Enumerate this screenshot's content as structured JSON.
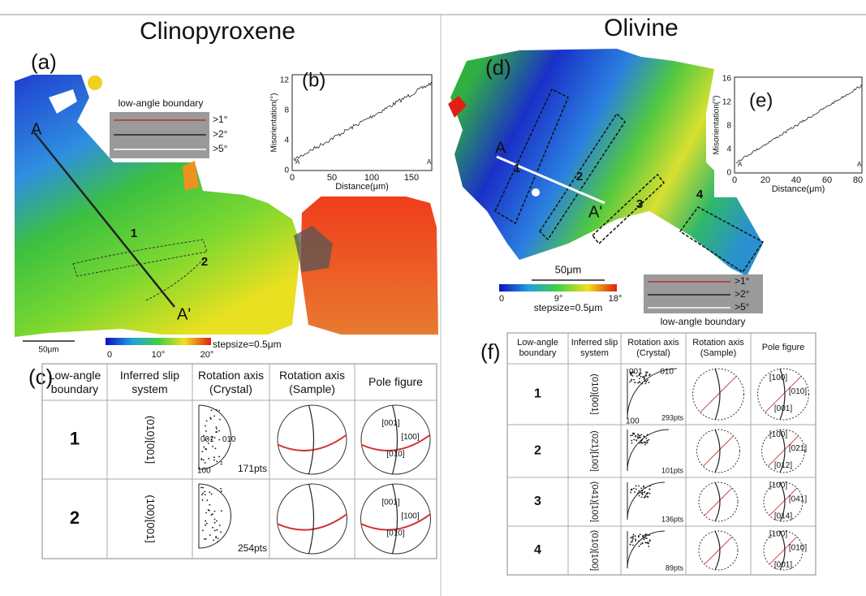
{
  "clinopyroxene": {
    "title": "Clinopyroxene",
    "map": {
      "label": "(a)",
      "point_start": "A",
      "point_end": "A'",
      "boundaries": [
        "1",
        "2"
      ],
      "legend_title": "low-angle boundary",
      "legend_items": [
        ">1°",
        ">2°",
        ">5°"
      ],
      "scale_bar": "50μm",
      "colorbar_ticks": [
        "0",
        "10°",
        "20°"
      ],
      "stepsize": "stepsize=0.5μm"
    },
    "profile": {
      "label": "(b)",
      "y_label": "Misorientation(°)",
      "x_label": "Distance(μm)",
      "xticks": [
        "0",
        "50",
        "100",
        "150"
      ],
      "yticks": [
        "0",
        "4",
        "8",
        "12"
      ],
      "start": "A",
      "end": "A'"
    },
    "table": {
      "label": "(c)",
      "header": [
        "Low-angle boundary",
        "Inferred slip system",
        "Rotation axis (Crystal)",
        "Rotation axis (Sample)",
        "Pole figure"
      ],
      "rows": [
        {
          "boundary": "1",
          "slip": "(010)[001]",
          "axis_labels": [
            "001",
            "010",
            "100"
          ],
          "points": "171pts",
          "pole_labels": [
            "[001]",
            "[100]",
            "[010]"
          ]
        },
        {
          "boundary": "2",
          "slip": "(100)[001]",
          "points": "254pts",
          "pole_labels": [
            "[001]",
            "[100]",
            "[010]"
          ]
        }
      ]
    }
  },
  "olivine": {
    "title": "Olivine",
    "map": {
      "label": "(d)",
      "point_start": "A",
      "point_end": "A'",
      "boundaries": [
        "1",
        "2",
        "3",
        "4"
      ],
      "legend_title": "low-angle boundary",
      "legend_items": [
        ">1°",
        ">2°",
        ">5°"
      ],
      "scale_bar": "50μm",
      "colorbar_ticks": [
        "0",
        "9°",
        "18°"
      ],
      "stepsize": "stepsize=0.5μm"
    },
    "profile": {
      "label": "(e)",
      "y_label": "Misorientation(°)",
      "x_label": "Distance(μm)",
      "xticks": [
        "0",
        "20",
        "40",
        "60",
        "80"
      ],
      "yticks": [
        "0",
        "4",
        "8",
        "12",
        "16"
      ],
      "start": "A",
      "end": "A'"
    },
    "table": {
      "label": "(f)",
      "header": [
        "Low-angle boundary",
        "Inferred slip system",
        "Rotation axis (Crystal)",
        "Rotation axis (Sample)",
        "Pole figure"
      ],
      "rows": [
        {
          "boundary": "1",
          "slip": "(010)[001]",
          "axis_labels": [
            "001",
            "010",
            "100"
          ],
          "points": "293pts",
          "pole_labels": [
            "[100]",
            "[010]",
            "[001]"
          ]
        },
        {
          "boundary": "2",
          "slip": "(021)[100]",
          "points": "101pts",
          "pole_labels": [
            "[100]",
            "[021]",
            "[012]"
          ]
        },
        {
          "boundary": "3",
          "slip": "(041)[100]",
          "points": "136pts",
          "pole_labels": [
            "[100]",
            "[041]",
            "[014]"
          ]
        },
        {
          "boundary": "4",
          "slip": "(010)[100]",
          "points": "89pts",
          "pole_labels": [
            "[100]",
            "[010]",
            "[001]"
          ]
        }
      ]
    }
  }
}
